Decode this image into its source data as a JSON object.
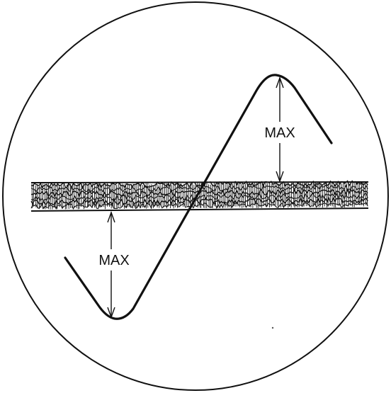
{
  "labels": {
    "upper_max": "MAX",
    "lower_max": "MAX"
  },
  "colors": {
    "background": "#ffffff",
    "ink": "#111111"
  }
}
